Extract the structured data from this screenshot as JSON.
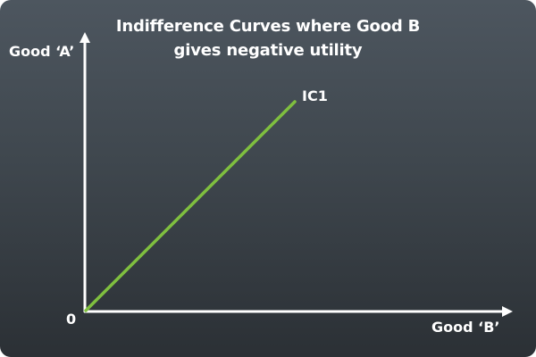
{
  "title": {
    "line1": "Indifference Curves where Good B",
    "line2": "gives negative utility"
  },
  "axes": {
    "y_label": "Good ‘A’",
    "x_label": "Good ‘B’",
    "origin_label": "0"
  },
  "curves": [
    {
      "name": "IC1",
      "color": "#7fbf3f",
      "points": [
        [
          0,
          0
        ],
        [
          1,
          1
        ]
      ]
    }
  ],
  "colors": {
    "axis": "#ffffff",
    "text": "#ffffff",
    "background_top": "#4d565f",
    "background_bottom": "#2b3035"
  }
}
